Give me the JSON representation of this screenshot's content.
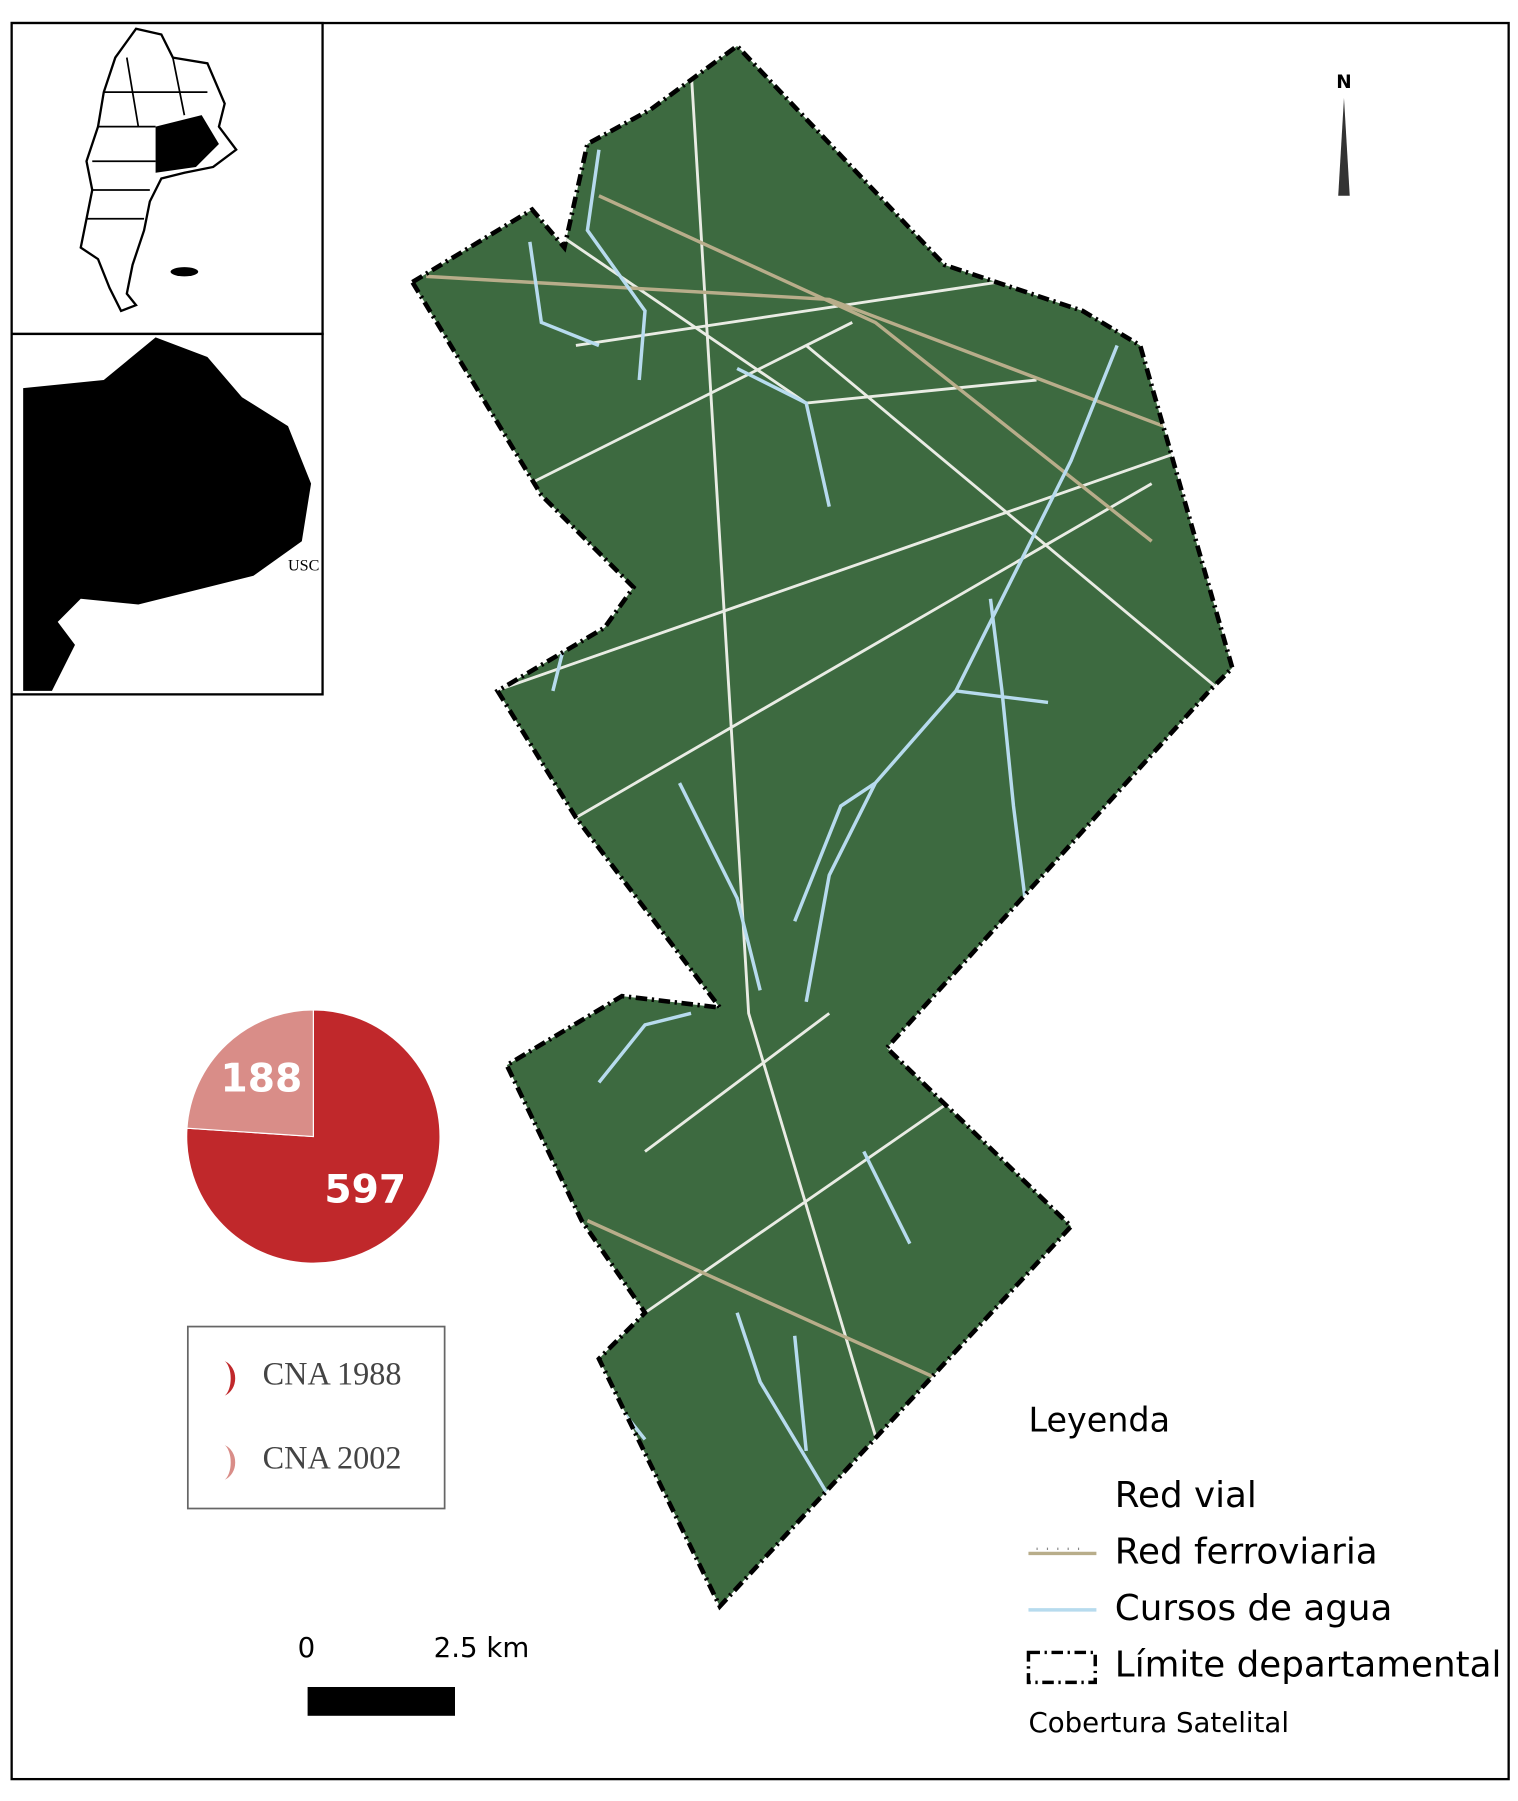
{
  "chart_data": {
    "type": "pie",
    "categories": [
      "CNA 1988",
      "CNA 2002"
    ],
    "values": [
      597,
      188
    ],
    "colors": [
      "#c0282b",
      "#d98d88"
    ]
  },
  "inset": {
    "label": "USC"
  },
  "north": "N",
  "scale_bar": {
    "start": "0",
    "end": "2.5 km"
  },
  "legend": {
    "title": "Leyenda",
    "items": [
      "Red vial",
      "Red ferroviaria",
      "Cursos de agua",
      "Límite departamental"
    ],
    "footer": "Cobertura Satelital"
  }
}
